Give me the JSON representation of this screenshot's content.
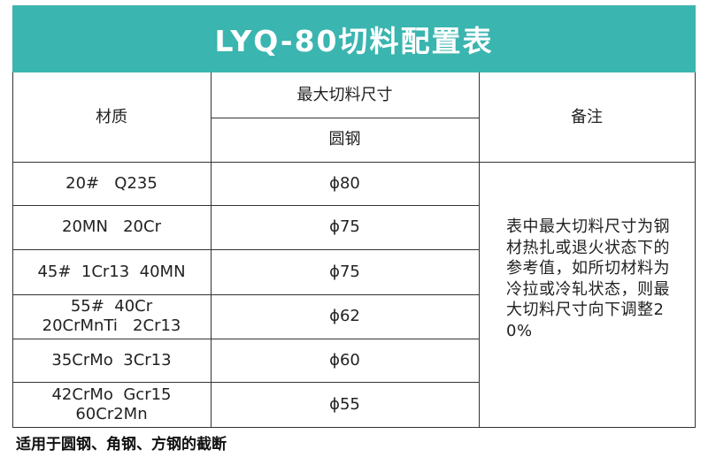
{
  "title": "LYQ-80切料配置表",
  "headers": {
    "material": "材质",
    "max_cut": "最大切料尺寸",
    "round_steel": "圆钢",
    "remark": "备注"
  },
  "rows": [
    {
      "material_lines": [
        "20#   Q235"
      ],
      "size": "ϕ80"
    },
    {
      "material_lines": [
        "20MN   20Cr"
      ],
      "size": "ϕ75"
    },
    {
      "material_lines": [
        "45#  1Cr13  40MN"
      ],
      "size": "ϕ75"
    },
    {
      "material_lines": [
        "55#  40Cr",
        "20CrMnTi   2Cr13"
      ],
      "size": "ϕ62"
    },
    {
      "material_lines": [
        "35CrMo  3Cr13"
      ],
      "size": "ϕ60"
    },
    {
      "material_lines": [
        "42CrMo  Gcr15",
        "60Cr2Mn"
      ],
      "size": "ϕ55"
    }
  ],
  "remark_text": "表中最大切料尺寸为钢材热扎或退火状态下的参考值，如所切材料为冷拉或冷轧状态，则最大切料尺寸向下调整20%",
  "footnote": "适用于圆钢、角钢、方钢的截断",
  "colors": {
    "title_bg": "#3ab5b0",
    "title_text": "#ffffff",
    "grid_line": "#333333"
  }
}
